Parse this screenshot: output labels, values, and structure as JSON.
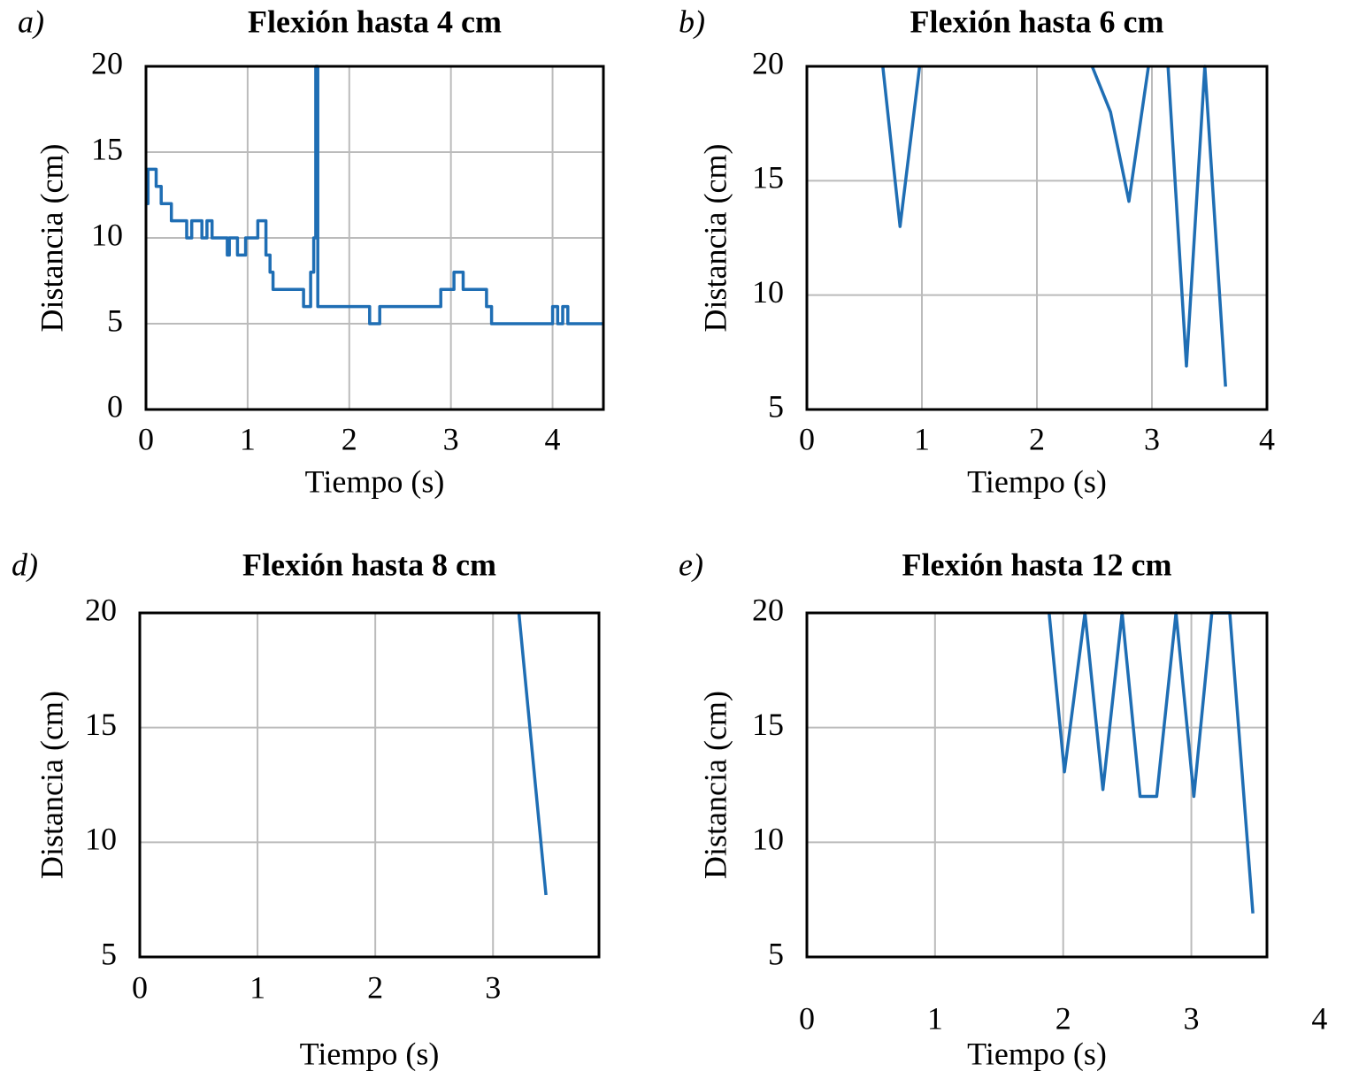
{
  "chart_data": [
    {
      "type": "line",
      "panel_label": "a)",
      "title": "Flexión hasta 4 cm",
      "x_label": "Tiempo (s)",
      "y_label": "Distancia (cm)",
      "color": "#1f6eb4",
      "grid": true,
      "xlim": [
        0,
        4.5
      ],
      "xticks": [
        0,
        1,
        2,
        3,
        4
      ],
      "ylim": [
        0,
        20
      ],
      "yticks": [
        0,
        5,
        10,
        15,
        20
      ],
      "x": [
        0,
        0.02,
        0.02,
        0.1,
        0.1,
        0.15,
        0.15,
        0.25,
        0.25,
        0.4,
        0.4,
        0.45,
        0.45,
        0.55,
        0.55,
        0.6,
        0.6,
        0.65,
        0.65,
        0.8,
        0.8,
        0.82,
        0.82,
        0.9,
        0.9,
        0.98,
        0.98,
        1.1,
        1.1,
        1.18,
        1.18,
        1.22,
        1.22,
        1.25,
        1.25,
        1.55,
        1.55,
        1.62,
        1.62,
        1.65,
        1.65,
        1.67,
        1.67,
        1.69,
        1.69,
        2.2,
        2.2,
        2.3,
        2.3,
        2.9,
        2.9,
        3.03,
        3.03,
        3.12,
        3.12,
        3.35,
        3.35,
        3.4,
        3.4,
        4.0,
        4.0,
        4.05,
        4.05,
        4.1,
        4.1,
        4.15,
        4.15,
        4.5
      ],
      "values": [
        12,
        12,
        14,
        14,
        13,
        13,
        12,
        12,
        11,
        11,
        10,
        10,
        11,
        11,
        10,
        10,
        11,
        11,
        10,
        10,
        9,
        9,
        10,
        10,
        9,
        9,
        10,
        10,
        11,
        11,
        9,
        9,
        8,
        8,
        7,
        7,
        6,
        6,
        8,
        8,
        10,
        10,
        20,
        20,
        6,
        6,
        5,
        5,
        6,
        6,
        7,
        7,
        8,
        8,
        7,
        7,
        6,
        6,
        5,
        5,
        6,
        6,
        5,
        5,
        6,
        6,
        5,
        5
      ]
    },
    {
      "type": "line",
      "panel_label": "b)",
      "title": "Flexión hasta 6 cm",
      "x_label": "Tiempo (s)",
      "y_label": "Distancia (cm)",
      "color": "#1f6eb4",
      "grid": true,
      "xlim": [
        0,
        4
      ],
      "xticks": [
        0,
        1,
        2,
        3,
        4
      ],
      "ylim": [
        5,
        20
      ],
      "yticks": [
        5,
        10,
        15,
        20
      ],
      "x": [
        0.66,
        0.81,
        0.98,
        null,
        2.48,
        2.64,
        2.8,
        2.97,
        null,
        3.14,
        3.3,
        3.46,
        3.64
      ],
      "values": [
        20,
        13.0,
        20,
        null,
        20,
        18.0,
        14.1,
        20,
        null,
        20,
        6.9,
        20,
        6.0
      ]
    },
    {
      "type": "line",
      "panel_label": "d)",
      "title": "Flexión hasta 8 cm",
      "x_label": "Tiempo (s)",
      "y_label": "Distancia (cm)",
      "color": "#1f6eb4",
      "grid": true,
      "xlim": [
        0,
        3.9
      ],
      "xticks": [
        0,
        1,
        2,
        3
      ],
      "ylim": [
        5,
        20
      ],
      "yticks": [
        5,
        10,
        15,
        20
      ],
      "x": [
        3.22,
        3.45
      ],
      "values": [
        20,
        7.7
      ]
    },
    {
      "type": "line",
      "panel_label": "e)",
      "title": "Flexión hasta 12 cm",
      "x_label": "Tiempo (s)",
      "y_label": "Distancia (cm)",
      "color": "#1f6eb4",
      "grid": true,
      "xlim": [
        0,
        3.59
      ],
      "xticks": [
        0,
        1,
        2,
        3,
        4
      ],
      "ylim": [
        5,
        20
      ],
      "yticks": [
        5,
        10,
        15,
        20
      ],
      "x": [
        1.89,
        2.01,
        2.17,
        2.31,
        2.46,
        2.6,
        2.73,
        2.88,
        3.02,
        3.16,
        3.3,
        3.48
      ],
      "values": [
        20,
        13.07,
        20,
        12.3,
        20,
        12.0,
        12.0,
        20,
        12.0,
        20,
        20,
        6.9
      ]
    }
  ]
}
